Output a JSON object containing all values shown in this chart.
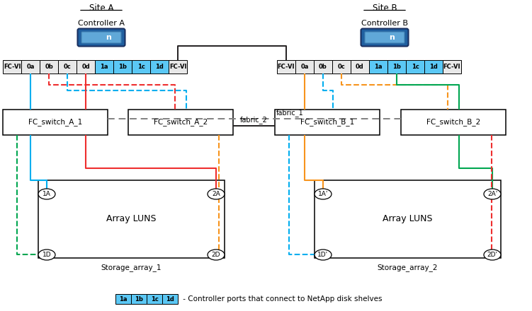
{
  "site_a_label": "Site A",
  "site_b_label": "Site B",
  "controller_a_label": "Controller A",
  "controller_b_label": "Controller B",
  "ports_a": [
    "FC-VI",
    "0a",
    "0b",
    "0c",
    "0d",
    "1a",
    "1b",
    "1c",
    "1d",
    "FC-VI"
  ],
  "ports_b": [
    "FC-VI",
    "0a",
    "0b",
    "0c",
    "0d",
    "1a",
    "1b",
    "1c",
    "1d",
    "FC-VI"
  ],
  "highlighted_ports": [
    "1a",
    "1b",
    "1c",
    "1d"
  ],
  "highlight_color": "#5BC8F5",
  "switch_a1": "FC_switch_A_1",
  "switch_a2": "FC_switch_A_2",
  "switch_b1": "FC_switch_B_1",
  "switch_b2": "FC_switch_B_2",
  "fabric_2_label": "fabric_2",
  "fabric_1_label": "fabric_1",
  "storage1_label": "Storage_array_1",
  "storage2_label": "Storage_array_2",
  "array_luns_label": "Array LUNS",
  "legend_text": " - Controller ports that connect to NetApp disk shelves",
  "legend_ports": [
    "1a",
    "1b",
    "1c",
    "1d"
  ],
  "bg_color": "#ffffff",
  "cyan": "#00AEEF",
  "red": "#EE2E2E",
  "green": "#00A651",
  "yellow": "#F7941D",
  "dark": "#231F20",
  "gray_dot": "#808080"
}
